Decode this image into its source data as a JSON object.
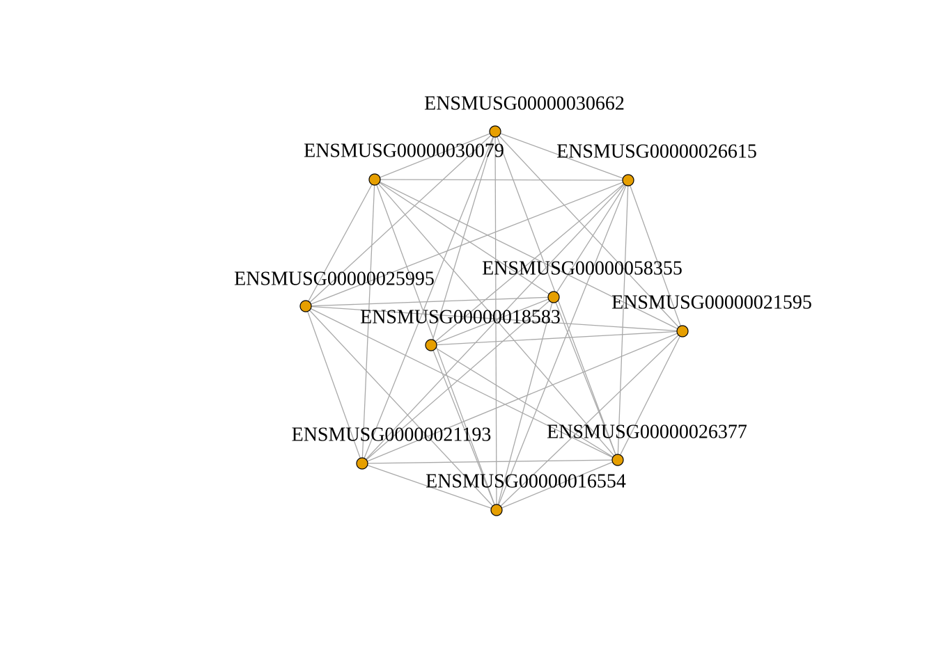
{
  "graph": {
    "node_color": "#E69F00",
    "edge_color": "#A9A9A9",
    "nodes": [
      {
        "id": "ENSMUSG00000030662",
        "label": "ENSMUSG00000030662"
      },
      {
        "id": "ENSMUSG00000030079",
        "label": "ENSMUSG00000030079"
      },
      {
        "id": "ENSMUSG00000026615",
        "label": "ENSMUSG00000026615"
      },
      {
        "id": "ENSMUSG00000025995",
        "label": "ENSMUSG00000025995"
      },
      {
        "id": "ENSMUSG00000058355",
        "label": "ENSMUSG00000058355"
      },
      {
        "id": "ENSMUSG00000021595",
        "label": "ENSMUSG00000021595"
      },
      {
        "id": "ENSMUSG00000018583",
        "label": "ENSMUSG00000018583"
      },
      {
        "id": "ENSMUSG00000021193",
        "label": "ENSMUSG00000021193"
      },
      {
        "id": "ENSMUSG00000026377",
        "label": "ENSMUSG00000026377"
      },
      {
        "id": "ENSMUSG00000016554",
        "label": "ENSMUSG00000016554"
      }
    ],
    "edges": [
      [
        "ENSMUSG00000030662",
        "ENSMUSG00000030079"
      ],
      [
        "ENSMUSG00000030662",
        "ENSMUSG00000026615"
      ],
      [
        "ENSMUSG00000030662",
        "ENSMUSG00000025995"
      ],
      [
        "ENSMUSG00000030662",
        "ENSMUSG00000021595"
      ],
      [
        "ENSMUSG00000030662",
        "ENSMUSG00000021193"
      ],
      [
        "ENSMUSG00000030662",
        "ENSMUSG00000026377"
      ],
      [
        "ENSMUSG00000030662",
        "ENSMUSG00000016554"
      ],
      [
        "ENSMUSG00000030662",
        "ENSMUSG00000018583"
      ],
      [
        "ENSMUSG00000030079",
        "ENSMUSG00000026615"
      ],
      [
        "ENSMUSG00000030079",
        "ENSMUSG00000025995"
      ],
      [
        "ENSMUSG00000030079",
        "ENSMUSG00000058355"
      ],
      [
        "ENSMUSG00000030079",
        "ENSMUSG00000021595"
      ],
      [
        "ENSMUSG00000030079",
        "ENSMUSG00000021193"
      ],
      [
        "ENSMUSG00000030079",
        "ENSMUSG00000026377"
      ],
      [
        "ENSMUSG00000030079",
        "ENSMUSG00000016554"
      ],
      [
        "ENSMUSG00000026615",
        "ENSMUSG00000025995"
      ],
      [
        "ENSMUSG00000026615",
        "ENSMUSG00000021595"
      ],
      [
        "ENSMUSG00000026615",
        "ENSMUSG00000018583"
      ],
      [
        "ENSMUSG00000026615",
        "ENSMUSG00000021193"
      ],
      [
        "ENSMUSG00000026615",
        "ENSMUSG00000026377"
      ],
      [
        "ENSMUSG00000026615",
        "ENSMUSG00000016554"
      ],
      [
        "ENSMUSG00000026615",
        "ENSMUSG00000058355"
      ],
      [
        "ENSMUSG00000025995",
        "ENSMUSG00000058355"
      ],
      [
        "ENSMUSG00000025995",
        "ENSMUSG00000021595"
      ],
      [
        "ENSMUSG00000025995",
        "ENSMUSG00000021193"
      ],
      [
        "ENSMUSG00000025995",
        "ENSMUSG00000026377"
      ],
      [
        "ENSMUSG00000025995",
        "ENSMUSG00000016554"
      ],
      [
        "ENSMUSG00000058355",
        "ENSMUSG00000018583"
      ],
      [
        "ENSMUSG00000058355",
        "ENSMUSG00000021193"
      ],
      [
        "ENSMUSG00000058355",
        "ENSMUSG00000026377"
      ],
      [
        "ENSMUSG00000058355",
        "ENSMUSG00000016554"
      ],
      [
        "ENSMUSG00000021595",
        "ENSMUSG00000018583"
      ],
      [
        "ENSMUSG00000021595",
        "ENSMUSG00000021193"
      ],
      [
        "ENSMUSG00000021595",
        "ENSMUSG00000026377"
      ],
      [
        "ENSMUSG00000021595",
        "ENSMUSG00000016554"
      ],
      [
        "ENSMUSG00000018583",
        "ENSMUSG00000026377"
      ],
      [
        "ENSMUSG00000018583",
        "ENSMUSG00000016554"
      ],
      [
        "ENSMUSG00000021193",
        "ENSMUSG00000026377"
      ],
      [
        "ENSMUSG00000021193",
        "ENSMUSG00000016554"
      ],
      [
        "ENSMUSG00000026377",
        "ENSMUSG00000016554"
      ]
    ]
  }
}
